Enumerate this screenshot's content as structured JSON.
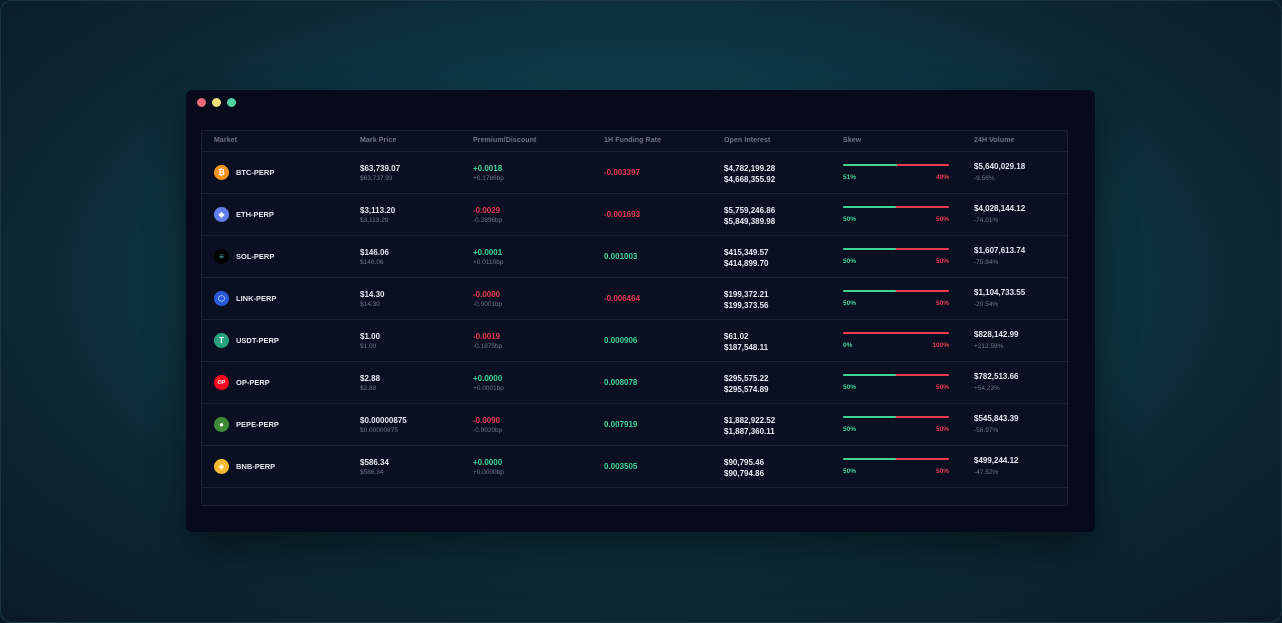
{
  "window": {
    "controls": [
      "close",
      "minimize",
      "maximize"
    ]
  },
  "colors": {
    "positive": "#3ed598",
    "negative": "#ea3b52"
  },
  "table": {
    "headers": {
      "market": "Market",
      "mark_price": "Mark Price",
      "premium": "Premium/Discount",
      "funding": "1H Funding Rate",
      "open_interest": "Open Interest",
      "skew": "Skew",
      "volume": "24H Volume"
    },
    "rows": [
      {
        "icon": "bitcoin-icon",
        "icon_glyph": "₿",
        "icon_color": "#f7931a",
        "market": "BTC-PERP",
        "price": "$63,739.07",
        "price_sub": "$63,737.93",
        "premium": "+0.0018",
        "premium_sub": "+0.1786bp",
        "premium_dir": "pos",
        "funding": "-0.003397",
        "funding_dir": "neg",
        "oi_long": "$4,782,199.28",
        "oi_short": "$4,668,355.92",
        "skew_long": 0.51,
        "skew_long_label": "51%",
        "skew_short_label": "49%",
        "volume": "$5,640,029.18",
        "volume_change": "-9.56%"
      },
      {
        "icon": "ethereum-icon",
        "icon_glyph": "◆",
        "icon_color": "#627eea",
        "market": "ETH-PERP",
        "price": "$3,113.20",
        "price_sub": "$3,113.29",
        "premium": "-0.0029",
        "premium_sub": "-0.2896bp",
        "premium_dir": "neg",
        "funding": "-0.001693",
        "funding_dir": "neg",
        "oi_long": "$5,759,246.86",
        "oi_short": "$5,849,389.98",
        "skew_long": 0.5,
        "skew_long_label": "50%",
        "skew_short_label": "50%",
        "volume": "$4,028,144.12",
        "volume_change": "-74.01%"
      },
      {
        "icon": "solana-icon",
        "icon_glyph": "≡",
        "icon_color": "#000000",
        "market": "SOL-PERP",
        "price": "$146.06",
        "price_sub": "$146.06",
        "premium": "+0.0001",
        "premium_sub": "+0.0110bp",
        "premium_dir": "pos",
        "funding": "0.001003",
        "funding_dir": "pos",
        "oi_long": "$415,349.57",
        "oi_short": "$414,899.70",
        "skew_long": 0.5,
        "skew_long_label": "50%",
        "skew_short_label": "50%",
        "volume": "$1,607,613.74",
        "volume_change": "-75.84%"
      },
      {
        "icon": "chainlink-icon",
        "icon_glyph": "⬡",
        "icon_color": "#2a5ada",
        "market": "LINK-PERP",
        "price": "$14.30",
        "price_sub": "$14.30",
        "premium": "-0.0000",
        "premium_sub": "-0.0001bp",
        "premium_dir": "neg",
        "funding": "-0.006464",
        "funding_dir": "neg",
        "oi_long": "$199,372.21",
        "oi_short": "$199,373.56",
        "skew_long": 0.5,
        "skew_long_label": "50%",
        "skew_short_label": "50%",
        "volume": "$1,104,733.55",
        "volume_change": "-20.54%"
      },
      {
        "icon": "tether-icon",
        "icon_glyph": "T",
        "icon_color": "#26a17b",
        "market": "USDT-PERP",
        "price": "$1.00",
        "price_sub": "$1.00",
        "premium": "-0.0019",
        "premium_sub": "-0.1875bp",
        "premium_dir": "neg",
        "funding": "0.000906",
        "funding_dir": "pos",
        "oi_long": "$61.02",
        "oi_short": "$187,548.11",
        "skew_long": 0.0,
        "skew_long_label": "0%",
        "skew_short_label": "100%",
        "volume": "$828,142.99",
        "volume_change": "+212.59%"
      },
      {
        "icon": "optimism-icon",
        "icon_glyph": "OP",
        "icon_color": "#ff0420",
        "market": "OP-PERP",
        "price": "$2.88",
        "price_sub": "$2.88",
        "premium": "+0.0000",
        "premium_sub": "+0.0001bp",
        "premium_dir": "pos",
        "funding": "0.008078",
        "funding_dir": "pos",
        "oi_long": "$295,575.22",
        "oi_short": "$295,574.89",
        "skew_long": 0.5,
        "skew_long_label": "50%",
        "skew_short_label": "50%",
        "volume": "$782,513.66",
        "volume_change": "+54.23%"
      },
      {
        "icon": "pepe-icon",
        "icon_glyph": "●",
        "icon_color": "#3d8b37",
        "market": "PEPE-PERP",
        "price": "$0.00000875",
        "price_sub": "$0.00000875",
        "premium": "-0.0090",
        "premium_sub": "-0.9020bp",
        "premium_dir": "neg",
        "funding": "0.007919",
        "funding_dir": "pos",
        "oi_long": "$1,882,922.52",
        "oi_short": "$1,887,360.11",
        "skew_long": 0.5,
        "skew_long_label": "50%",
        "skew_short_label": "50%",
        "volume": "$545,843.39",
        "volume_change": "-58.97%"
      },
      {
        "icon": "bnb-icon",
        "icon_glyph": "◈",
        "icon_color": "#f3ba2f",
        "market": "BNB-PERP",
        "price": "$586.34",
        "price_sub": "$586.34",
        "premium": "+0.0000",
        "premium_sub": "+0.0000bp",
        "premium_dir": "pos",
        "funding": "0.003505",
        "funding_dir": "pos",
        "oi_long": "$90,795.46",
        "oi_short": "$90,794.86",
        "skew_long": 0.5,
        "skew_long_label": "50%",
        "skew_short_label": "50%",
        "volume": "$499,244.12",
        "volume_change": "-47.52%"
      }
    ]
  }
}
